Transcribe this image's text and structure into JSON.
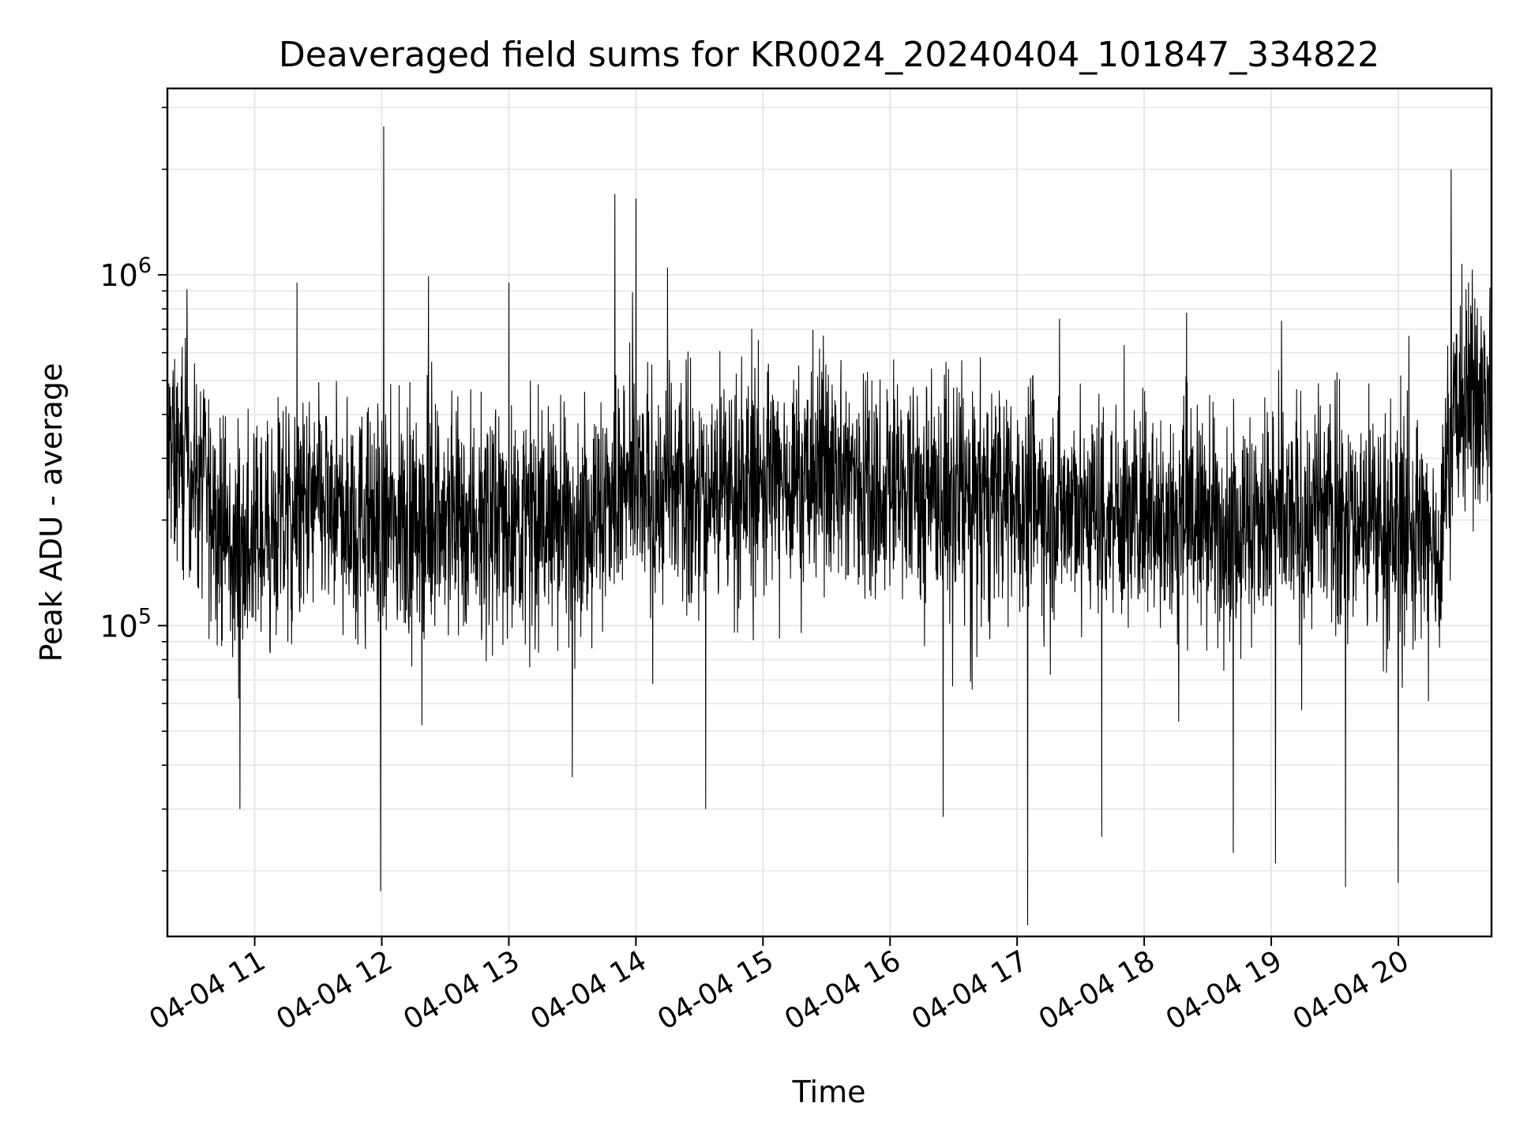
{
  "chart_data": {
    "type": "line",
    "title": "Deaveraged field sums for KR0024_20240404_101847_334822",
    "xlabel": "Time",
    "ylabel": "Peak ADU - average",
    "x_tick_labels": [
      "04-04 11",
      "04-04 12",
      "04-04 13",
      "04-04 14",
      "04-04 15",
      "04-04 16",
      "04-04 17",
      "04-04 18",
      "04-04 19",
      "04-04 20"
    ],
    "x_tick_values": [
      "2024-04-04 11:00",
      "2024-04-04 12:00",
      "2024-04-04 13:00",
      "2024-04-04 14:00",
      "2024-04-04 15:00",
      "2024-04-04 16:00",
      "2024-04-04 17:00",
      "2024-04-04 18:00",
      "2024-04-04 19:00",
      "2024-04-04 20:00"
    ],
    "xlim": [
      "2024-04-04 10:18:47",
      "2024-04-04 20:44"
    ],
    "y_scale": "log",
    "ylim": [
      13000,
      3400000
    ],
    "y_major_ticks": [
      {
        "value": 100000,
        "base": "10",
        "exp": "5"
      },
      {
        "value": 1000000,
        "base": "10",
        "exp": "6"
      }
    ],
    "grid": true,
    "line_color": "#000000",
    "series": [
      {
        "baseline": [
          [
            "2024-04-04 10:18:47",
            300000
          ],
          [
            "2024-04-04 10:30",
            290000
          ],
          [
            "2024-04-04 10:50",
            160000
          ],
          [
            "2024-04-04 11:30",
            220000
          ],
          [
            "2024-04-04 12:00",
            190000
          ],
          [
            "2024-04-04 12:30",
            210000
          ],
          [
            "2024-04-04 13:00",
            200000
          ],
          [
            "2024-04-04 13:30",
            200000
          ],
          [
            "2024-04-04 14:00",
            240000
          ],
          [
            "2024-04-04 14:30",
            240000
          ],
          [
            "2024-04-04 15:00",
            260000
          ],
          [
            "2024-04-04 15:30",
            280000
          ],
          [
            "2024-04-04 16:00",
            250000
          ],
          [
            "2024-04-04 16:30",
            230000
          ],
          [
            "2024-04-04 17:00",
            230000
          ],
          [
            "2024-04-04 17:30",
            220000
          ],
          [
            "2024-04-04 18:00",
            210000
          ],
          [
            "2024-04-04 18:30",
            200000
          ],
          [
            "2024-04-04 19:00",
            195000
          ],
          [
            "2024-04-04 19:30",
            210000
          ],
          [
            "2024-04-04 20:00",
            190000
          ],
          [
            "2024-04-04 20:20",
            170000
          ],
          [
            "2024-04-04 20:25",
            420000
          ],
          [
            "2024-04-04 20:44",
            440000
          ]
        ],
        "spikes": [
          [
            "2024-04-04 11:59:30",
            17500
          ],
          [
            "2024-04-04 12:01",
            2650000
          ],
          [
            "2024-04-04 13:50",
            1700000
          ],
          [
            "2024-04-04 14:00",
            1650000
          ],
          [
            "2024-04-04 14:15",
            1050000
          ],
          [
            "2024-04-04 11:20",
            950000
          ],
          [
            "2024-04-04 12:22",
            990000
          ],
          [
            "2024-04-04 13:00",
            950000
          ],
          [
            "2024-04-04 10:28",
            910000
          ],
          [
            "2024-04-04 10:53",
            30000
          ],
          [
            "2024-04-04 13:30",
            37000
          ],
          [
            "2024-04-04 14:33",
            30000
          ],
          [
            "2024-04-04 16:25",
            28500
          ],
          [
            "2024-04-04 17:05",
            14000
          ],
          [
            "2024-04-04 17:20",
            750000
          ],
          [
            "2024-04-04 17:40",
            25000
          ],
          [
            "2024-04-04 18:20",
            780000
          ],
          [
            "2024-04-04 18:42",
            22500
          ],
          [
            "2024-04-04 19:02",
            21000
          ],
          [
            "2024-04-04 19:35",
            18000
          ],
          [
            "2024-04-04 20:00",
            18500
          ],
          [
            "2024-04-04 20:05",
            670000
          ],
          [
            "2024-04-04 20:25",
            2000000
          ],
          [
            "2024-04-04 20:32",
            910000
          ]
        ]
      }
    ]
  }
}
